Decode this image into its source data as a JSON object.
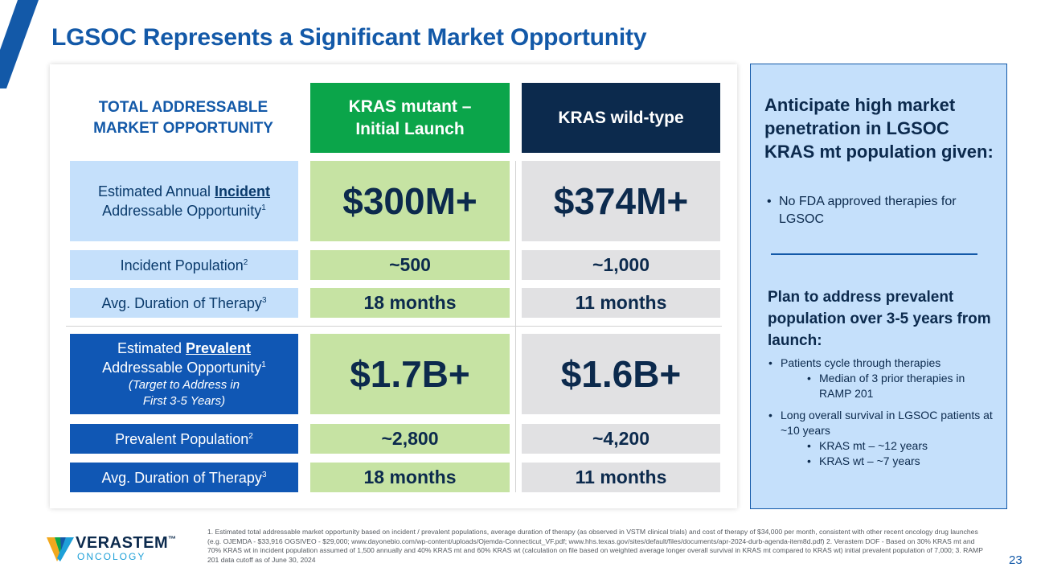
{
  "slide": {
    "title": "LGSOC Represents a Significant Market Opportunity",
    "page_number": "23"
  },
  "table": {
    "tam_heading_line1": "TOTAL ADDRESSABLE",
    "tam_heading_line2": "MARKET OPPORTUNITY",
    "col_mutant_line1": "KRAS mutant –",
    "col_mutant_line2": "Initial Launch",
    "col_wild": "KRAS wild-type",
    "incident_label_pre": "Estimated Annual ",
    "incident_label_ul": "Incident",
    "incident_label_line2": "Addressable Opportunity",
    "incident_sup": "1",
    "incident_mutant": "$300M+",
    "incident_wild": "$374M+",
    "incident_pop_label": "Incident Population",
    "incident_pop_sup": "2",
    "incident_pop_mutant": "~500",
    "incident_pop_wild": "~1,000",
    "duration_label": "Avg. Duration of Therapy",
    "duration_sup": "3",
    "duration_mutant": "18 months",
    "duration_wild": "11 months",
    "prevalent_label_pre": "Estimated ",
    "prevalent_label_ul": "Prevalent",
    "prevalent_label_line2": "Addressable Opportunity",
    "prevalent_sup": "1",
    "prevalent_italic_line1": "(Target to Address in",
    "prevalent_italic_line2": "First 3-5 Years)",
    "prevalent_mutant": "$1.7B+",
    "prevalent_wild": "$1.6B+",
    "prevalent_pop_label": "Prevalent Population",
    "prevalent_pop_sup": "2",
    "prevalent_pop_mutant": "~2,800",
    "prevalent_pop_wild": "~4,200",
    "duration2_label": "Avg. Duration of Therapy",
    "duration2_sup": "3",
    "duration2_mutant": "18 months",
    "duration2_wild": "11 months"
  },
  "side": {
    "heading1": "Anticipate high market penetration in LGSOC KRAS mt population given:",
    "bullet1": "No FDA approved therapies for LGSOC",
    "heading2": "Plan to address prevalent population over 3-5 years from launch:",
    "bullet2": "Patients cycle through therapies",
    "bullet2_sub1": "Median of 3 prior therapies in RAMP 201",
    "bullet3": "Long overall survival in LGSOC patients at ~10 years",
    "bullet3_sub1": "KRAS mt – ~12 years",
    "bullet3_sub2": "KRAS wt – ~7 years"
  },
  "logo": {
    "name": "VERASTEM",
    "tm": "™",
    "sub": "ONCOLOGY"
  },
  "footnote": "1. Estimated total addressable market opportunity based on incident / prevalent populations, average duration of therapy (as observed in VSTM clinical trials) and cost of therapy of $34,000 per month, consistent with other recent oncology drug launches (e.g. OJEMDA - $33,916 OGSIVEO - $29,000; www.dayonebio.com/wp-content/uploads/Ojemda-Connecticut_VF.pdf; www.hhs.texas.gov/sites/default/files/documents/apr-2024-durb-agenda-item8d.pdf) 2. Verastem DOF - Based on 30% KRAS mt and 70% KRAS wt in incident population assumed of 1,500 annually and 40% KRAS mt and 60% KRAS wt (calculation on file based on weighted average longer overall survival in KRAS mt compared to KRAS wt) initial prevalent population of 7,000; 3. RAMP 201 data cutoff as of June 30, 2024",
  "colors": {
    "title_blue": "#1359a8",
    "navy": "#0c2a4d",
    "green": "#0ba54a",
    "light_green": "#c6e3a3",
    "light_blue": "#c5e0fb",
    "grey": "#e1e1e3"
  }
}
